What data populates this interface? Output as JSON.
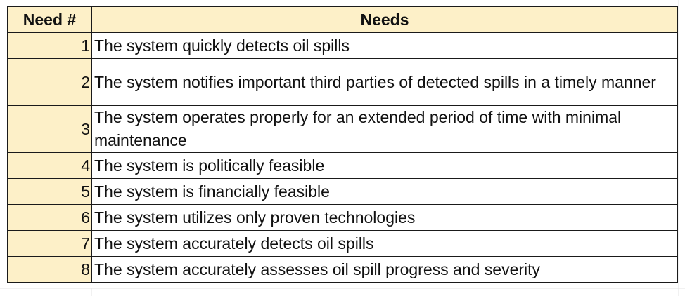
{
  "table": {
    "headers": {
      "need_number": "Need #",
      "needs": "Needs"
    },
    "rows": [
      {
        "number": "1",
        "need": "The system quickly detects oil spills",
        "lines": 1
      },
      {
        "number": "2",
        "need": "The system notifies important third parties of detected spills in a timely manner",
        "lines": 2
      },
      {
        "number": "3",
        "need": "The system operates properly for an extended period of time with minimal maintenance",
        "lines": 2
      },
      {
        "number": "4",
        "need": "The system is politically feasible",
        "lines": 1
      },
      {
        "number": "5",
        "need": "The system is financially feasible",
        "lines": 1
      },
      {
        "number": "6",
        "need": "The system utilizes only proven technologies",
        "lines": 1
      },
      {
        "number": "7",
        "need": "The system accurately detects oil spills",
        "lines": 1
      },
      {
        "number": "8",
        "need": "The system accurately assesses oil spill progress and severity",
        "lines": 1
      }
    ]
  },
  "colors": {
    "header_fill": "#fdf0c8",
    "number_fill": "#fdf0c8",
    "border": "#1a1a1a",
    "gridline": "#e3e3e3"
  }
}
